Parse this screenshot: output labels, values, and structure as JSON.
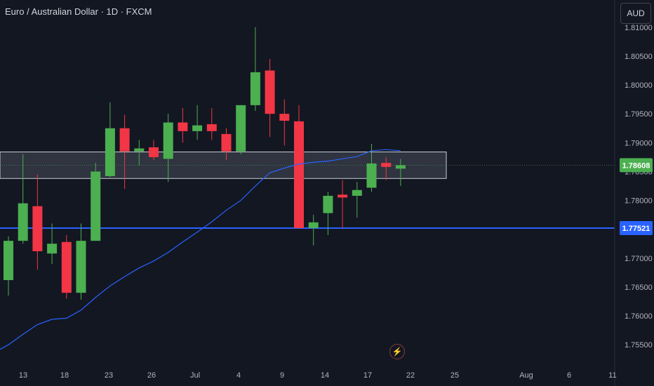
{
  "header": {
    "title": "Euro / Australian Dollar · 1D · FXCM"
  },
  "currency_button": {
    "label": "AUD"
  },
  "colors": {
    "background": "#131722",
    "up": "#4caf50",
    "down": "#f23645",
    "ma_line": "#2962ff",
    "support_line": "#2962ff",
    "axis_text": "#b2b5be",
    "zone_fill": "#3a3f4b"
  },
  "icons": {
    "flash": "lightning-bolt-icon"
  },
  "chart_data": {
    "type": "candlestick",
    "y_ticks": [
      "1.81000",
      "1.80500",
      "1.80000",
      "1.79500",
      "1.79000",
      "1.78500",
      "1.78000",
      "1.77500",
      "1.77000",
      "1.76500",
      "1.76000",
      "1.75500"
    ],
    "x_ticks": [
      "13",
      "18",
      "23",
      "26",
      "Jul",
      "4",
      "9",
      "14",
      "17",
      "22",
      "25",
      "Aug",
      "6",
      "11"
    ],
    "ylim": [
      1.7515,
      1.8135
    ],
    "price_label": "1.78608",
    "support_label": "1.77521",
    "support_level": 1.77521,
    "zone": {
      "top": 1.7884,
      "bottom": 1.7838,
      "until_candle": 30
    },
    "candles": [
      {
        "o": 1.7662,
        "h": 1.7738,
        "l": 1.7635,
        "c": 1.773
      },
      {
        "o": 1.773,
        "h": 1.788,
        "l": 1.7725,
        "c": 1.7795
      },
      {
        "o": 1.779,
        "h": 1.7845,
        "l": 1.768,
        "c": 1.7712
      },
      {
        "o": 1.7708,
        "h": 1.776,
        "l": 1.769,
        "c": 1.7725
      },
      {
        "o": 1.7728,
        "h": 1.774,
        "l": 1.763,
        "c": 1.764
      },
      {
        "o": 1.764,
        "h": 1.776,
        "l": 1.7628,
        "c": 1.773
      },
      {
        "o": 1.773,
        "h": 1.7865,
        "l": 1.773,
        "c": 1.785
      },
      {
        "o": 1.7842,
        "h": 1.797,
        "l": 1.784,
        "c": 1.7925
      },
      {
        "o": 1.7925,
        "h": 1.7948,
        "l": 1.782,
        "c": 1.7885
      },
      {
        "o": 1.7885,
        "h": 1.7905,
        "l": 1.786,
        "c": 1.789
      },
      {
        "o": 1.7892,
        "h": 1.7905,
        "l": 1.787,
        "c": 1.7875
      },
      {
        "o": 1.7872,
        "h": 1.795,
        "l": 1.7832,
        "c": 1.7935
      },
      {
        "o": 1.7935,
        "h": 1.796,
        "l": 1.79,
        "c": 1.792
      },
      {
        "o": 1.792,
        "h": 1.7965,
        "l": 1.7905,
        "c": 1.793
      },
      {
        "o": 1.7932,
        "h": 1.796,
        "l": 1.7905,
        "c": 1.792
      },
      {
        "o": 1.7915,
        "h": 1.7925,
        "l": 1.787,
        "c": 1.7885
      },
      {
        "o": 1.7885,
        "h": 1.7965,
        "l": 1.788,
        "c": 1.7965
      },
      {
        "o": 1.7965,
        "h": 1.81,
        "l": 1.7955,
        "c": 1.8022
      },
      {
        "o": 1.8025,
        "h": 1.8045,
        "l": 1.791,
        "c": 1.795
      },
      {
        "o": 1.795,
        "h": 1.7975,
        "l": 1.7895,
        "c": 1.7938
      },
      {
        "o": 1.7937,
        "h": 1.7965,
        "l": 1.7752,
        "c": 1.7752
      },
      {
        "o": 1.7752,
        "h": 1.7775,
        "l": 1.7722,
        "c": 1.7762
      },
      {
        "o": 1.7778,
        "h": 1.7815,
        "l": 1.774,
        "c": 1.7808
      },
      {
        "o": 1.781,
        "h": 1.7835,
        "l": 1.7752,
        "c": 1.7805
      },
      {
        "o": 1.7808,
        "h": 1.7832,
        "l": 1.777,
        "c": 1.7818
      },
      {
        "o": 1.7822,
        "h": 1.7898,
        "l": 1.7815,
        "c": 1.7864
      },
      {
        "o": 1.7865,
        "h": 1.7875,
        "l": 1.7835,
        "c": 1.7858
      },
      {
        "o": 1.7855,
        "h": 1.7872,
        "l": 1.7825,
        "c": 1.7861
      }
    ],
    "ma_series": [
      [
        0,
        1.755
      ],
      [
        1,
        1.7568
      ],
      [
        2,
        1.7585
      ],
      [
        3,
        1.7594
      ],
      [
        4,
        1.7596
      ],
      [
        5,
        1.761
      ],
      [
        6,
        1.7632
      ],
      [
        7,
        1.7652
      ],
      [
        8,
        1.7668
      ],
      [
        9,
        1.7683
      ],
      [
        10,
        1.7695
      ],
      [
        11,
        1.771
      ],
      [
        12,
        1.7728
      ],
      [
        13,
        1.7745
      ],
      [
        14,
        1.7763
      ],
      [
        15,
        1.7783
      ],
      [
        16,
        1.78
      ],
      [
        17,
        1.7825
      ],
      [
        18,
        1.7848
      ],
      [
        19,
        1.7856
      ],
      [
        20,
        1.7863
      ],
      [
        21,
        1.7866
      ],
      [
        22,
        1.7868
      ],
      [
        23,
        1.7872
      ],
      [
        24,
        1.7876
      ],
      [
        25,
        1.7886
      ],
      [
        26,
        1.7888
      ],
      [
        27,
        1.7886
      ]
    ]
  }
}
